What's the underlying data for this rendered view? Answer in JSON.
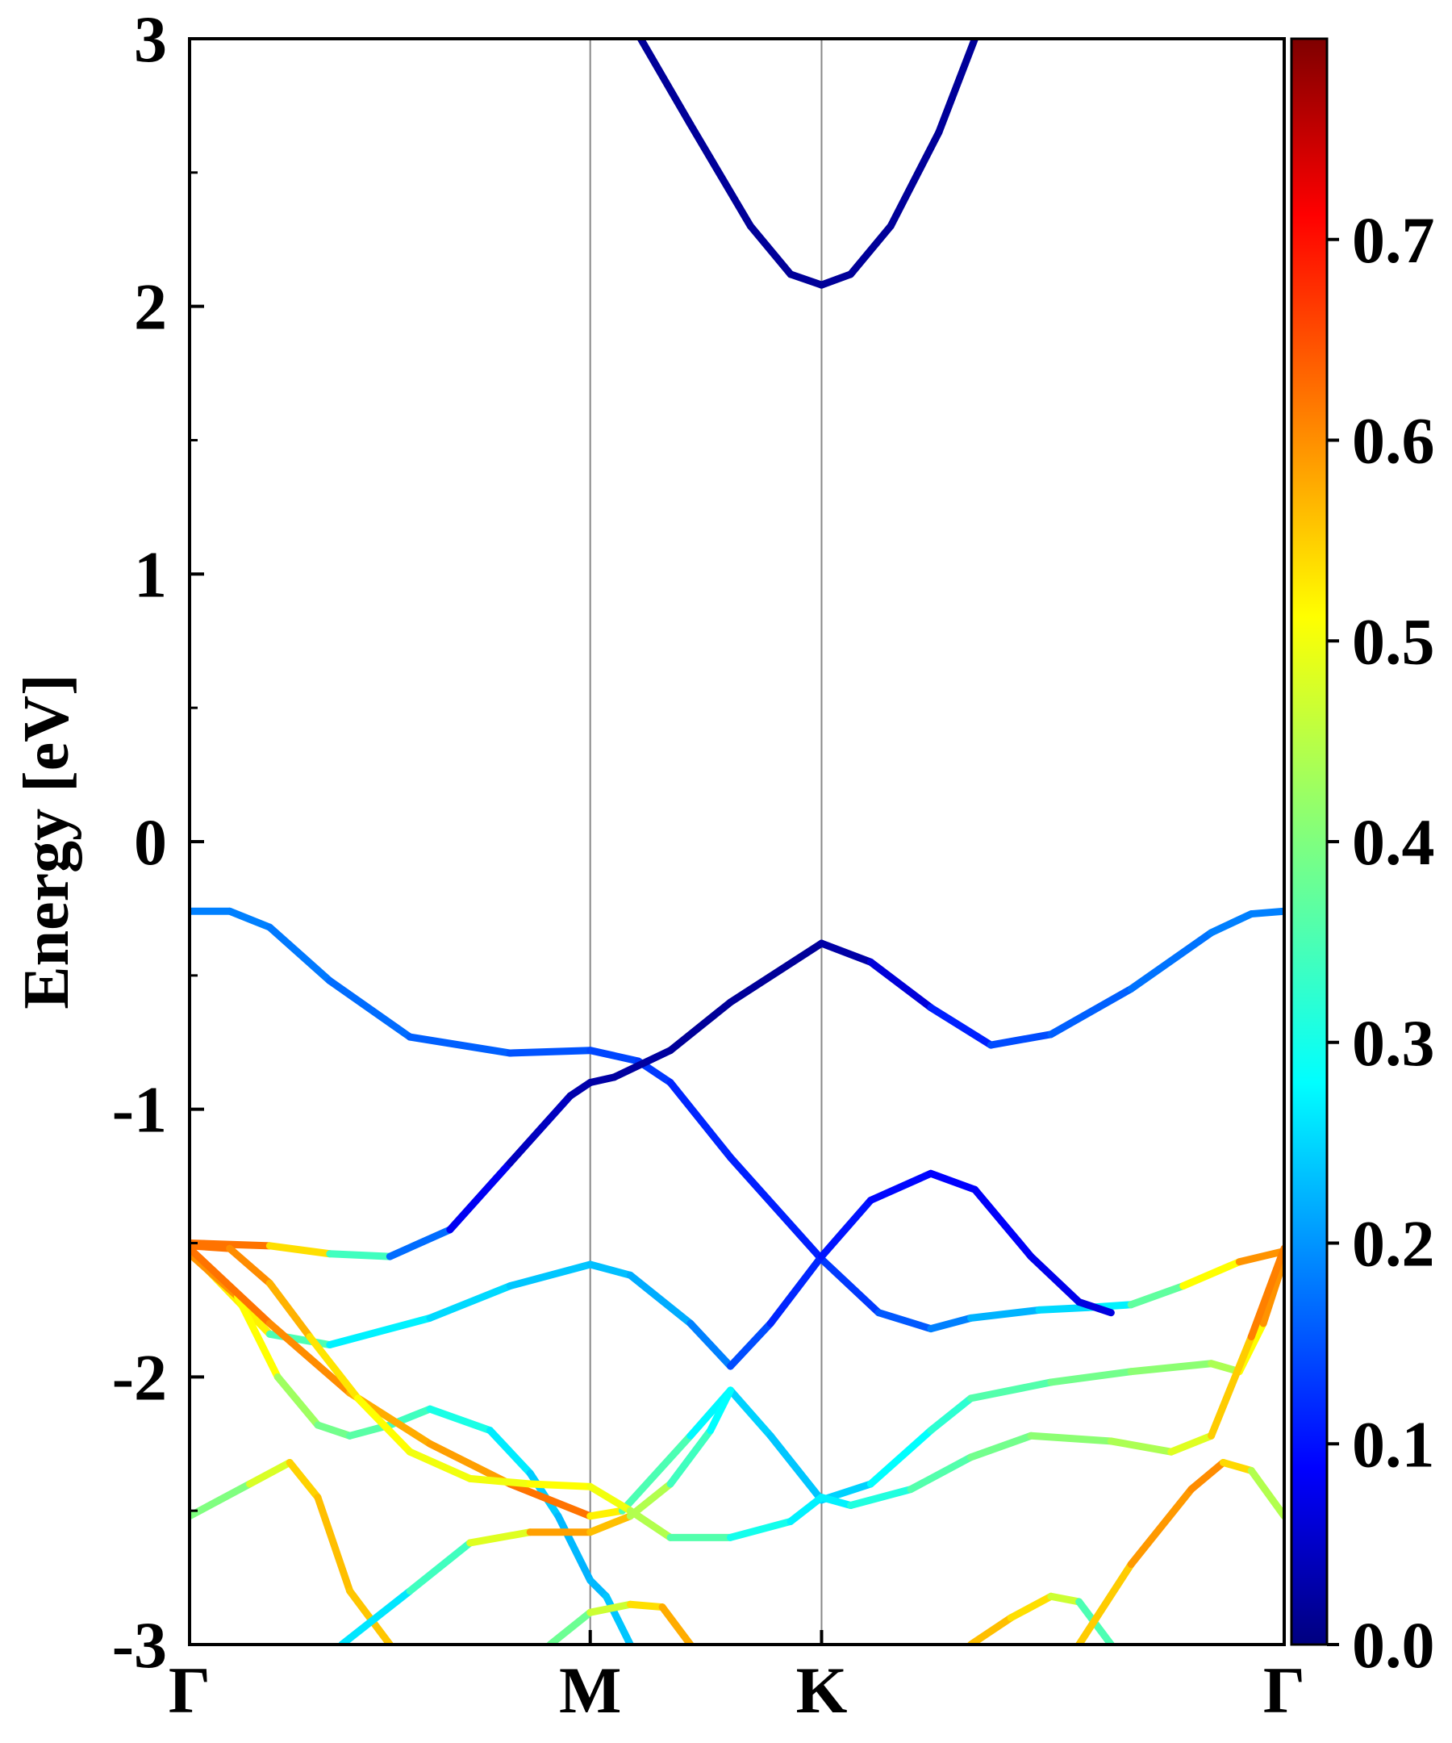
{
  "chart_data": {
    "type": "line",
    "title": "",
    "xlabel": "",
    "ylabel": "Energy [eV]",
    "ylim": [
      -3,
      3
    ],
    "yticks": [
      "-3",
      "-2",
      "-1",
      "0",
      "1",
      "2",
      "3"
    ],
    "kpoints": [
      {
        "label": "Γ",
        "pos": 0.0
      },
      {
        "label": "M",
        "pos": 1.0
      },
      {
        "label": "K",
        "pos": 1.5774
      },
      {
        "label": "Γ",
        "pos": 2.7321
      }
    ],
    "grid": false,
    "colorbar": {
      "colormap": "jet",
      "range": [
        0.0,
        0.8
      ],
      "ticks": [
        "0.0",
        "0.1",
        "0.2",
        "0.3",
        "0.4",
        "0.5",
        "0.6",
        "0.7"
      ]
    },
    "series": [
      {
        "points": [
          [
            1.126,
            3.0
          ],
          [
            1.25,
            2.68
          ],
          [
            1.4,
            2.3
          ],
          [
            1.5,
            2.12
          ],
          [
            1.5774,
            2.08
          ],
          [
            1.65,
            2.12
          ],
          [
            1.75,
            2.3
          ],
          [
            1.87,
            2.65
          ],
          [
            1.96,
            3.0
          ]
        ],
        "c": 0.02
      },
      {
        "points": [
          [
            0,
            -0.26
          ],
          [
            0.1,
            -0.26
          ],
          [
            0.2,
            -0.32
          ],
          [
            0.35,
            -0.52
          ],
          [
            0.55,
            -0.73
          ],
          [
            0.8,
            -0.79
          ],
          [
            1.0,
            -0.78
          ],
          [
            1.12,
            -0.82
          ],
          [
            1.2,
            -0.9
          ],
          [
            1.35,
            -1.18
          ],
          [
            1.5774,
            -1.56
          ],
          [
            1.72,
            -1.76
          ],
          [
            1.85,
            -1.82
          ],
          [
            1.95,
            -1.78
          ],
          [
            2.12,
            -1.75
          ],
          [
            2.25,
            -1.74
          ],
          [
            2.35,
            -1.73
          ],
          [
            2.48,
            -1.66
          ],
          [
            2.62,
            -1.57
          ],
          [
            2.7321,
            -1.53
          ]
        ],
        "c": [
          0.2,
          0.2,
          0.2,
          0.19,
          0.18,
          0.17,
          0.16,
          0.15,
          0.14,
          0.12,
          0.13,
          0.16,
          0.18,
          0.22,
          0.26,
          0.28,
          0.3,
          0.45,
          0.55,
          0.62
        ]
      },
      {
        "points": [
          [
            0,
            -1.5
          ],
          [
            0.2,
            -1.51
          ],
          [
            0.35,
            -1.54
          ],
          [
            0.5,
            -1.55
          ],
          [
            0.65,
            -1.45
          ],
          [
            0.8,
            -1.2
          ],
          [
            0.95,
            -0.95
          ],
          [
            1.0,
            -0.9
          ],
          [
            1.06,
            -0.88
          ],
          [
            1.2,
            -0.78
          ],
          [
            1.35,
            -0.6
          ],
          [
            1.5774,
            -0.38
          ],
          [
            1.7,
            -0.45
          ],
          [
            1.85,
            -0.62
          ],
          [
            2.0,
            -0.76
          ],
          [
            2.15,
            -0.72
          ],
          [
            2.35,
            -0.55
          ],
          [
            2.55,
            -0.34
          ],
          [
            2.65,
            -0.27
          ],
          [
            2.7321,
            -0.26
          ]
        ],
        "c": [
          0.62,
          0.6,
          0.45,
          0.25,
          0.12,
          0.06,
          0.04,
          0.03,
          0.03,
          0.02,
          0.02,
          0.02,
          0.04,
          0.1,
          0.15,
          0.17,
          0.18,
          0.2,
          0.2,
          0.2
        ]
      },
      {
        "points": [
          [
            0,
            -1.53
          ],
          [
            0.2,
            -1.84
          ],
          [
            0.35,
            -1.88
          ],
          [
            0.6,
            -1.78
          ],
          [
            0.8,
            -1.66
          ],
          [
            1.0,
            -1.58
          ],
          [
            1.1,
            -1.62
          ],
          [
            1.25,
            -1.8
          ],
          [
            1.35,
            -1.96
          ],
          [
            1.45,
            -1.8
          ],
          [
            1.5774,
            -1.55
          ],
          [
            1.7,
            -1.34
          ],
          [
            1.85,
            -1.24
          ],
          [
            1.96,
            -1.3
          ],
          [
            2.1,
            -1.55
          ],
          [
            2.22,
            -1.72
          ],
          [
            2.3,
            -1.76
          ]
        ],
        "c": [
          0.6,
          0.42,
          0.3,
          0.28,
          0.26,
          0.25,
          0.25,
          0.22,
          0.18,
          0.14,
          0.12,
          0.11,
          0.1,
          0.1,
          0.09,
          0.08,
          0.07
        ]
      },
      {
        "points": [
          [
            0,
            -1.54
          ],
          [
            0.12,
            -1.7
          ],
          [
            0.22,
            -2.0
          ],
          [
            0.32,
            -2.18
          ],
          [
            0.4,
            -2.22
          ],
          [
            0.5,
            -2.18
          ],
          [
            0.6,
            -2.12
          ],
          [
            0.75,
            -2.2
          ],
          [
            0.85,
            -2.36
          ],
          [
            0.92,
            -2.52
          ],
          [
            0.98,
            -2.7
          ],
          [
            1.0,
            -2.76
          ],
          [
            1.04,
            -2.82
          ],
          [
            1.1,
            -3.0
          ]
        ],
        "c": [
          0.62,
          0.55,
          0.45,
          0.4,
          0.38,
          0.36,
          0.34,
          0.3,
          0.27,
          0.25,
          0.24,
          0.24,
          0.25,
          0.26
        ]
      },
      {
        "points": [
          [
            0,
            -1.52
          ],
          [
            0.2,
            -1.8
          ],
          [
            0.4,
            -2.06
          ],
          [
            0.6,
            -2.25
          ],
          [
            0.8,
            -2.4
          ],
          [
            1.0,
            -2.52
          ],
          [
            1.08,
            -2.5
          ],
          [
            1.25,
            -2.22
          ],
          [
            1.35,
            -2.05
          ],
          [
            1.45,
            -2.22
          ],
          [
            1.5774,
            -2.46
          ],
          [
            1.7,
            -2.4
          ],
          [
            1.85,
            -2.2
          ],
          [
            1.95,
            -2.08
          ],
          [
            2.15,
            -2.02
          ],
          [
            2.35,
            -1.98
          ],
          [
            2.55,
            -1.95
          ],
          [
            2.62,
            -1.98
          ],
          [
            2.68,
            -1.8
          ],
          [
            2.7321,
            -1.56
          ]
        ],
        "c": [
          0.62,
          0.6,
          0.58,
          0.55,
          0.6,
          0.62,
          0.4,
          0.32,
          0.27,
          0.26,
          0.25,
          0.28,
          0.32,
          0.35,
          0.38,
          0.4,
          0.42,
          0.45,
          0.55,
          0.62
        ]
      },
      {
        "points": [
          [
            0,
            -1.51
          ],
          [
            0.1,
            -1.52
          ],
          [
            0.2,
            -1.65
          ],
          [
            0.3,
            -1.85
          ],
          [
            0.42,
            -2.08
          ],
          [
            0.55,
            -2.28
          ],
          [
            0.7,
            -2.38
          ],
          [
            0.85,
            -2.4
          ],
          [
            1.0,
            -2.41
          ],
          [
            1.1,
            -2.5
          ],
          [
            1.2,
            -2.6
          ],
          [
            1.35,
            -2.6
          ],
          [
            1.5,
            -2.54
          ],
          [
            1.5774,
            -2.45
          ],
          [
            1.65,
            -2.48
          ],
          [
            1.8,
            -2.42
          ],
          [
            1.95,
            -2.3
          ],
          [
            2.1,
            -2.22
          ],
          [
            2.3,
            -2.24
          ],
          [
            2.45,
            -2.28
          ],
          [
            2.55,
            -2.22
          ],
          [
            2.65,
            -1.85
          ],
          [
            2.7321,
            -1.52
          ]
        ],
        "c": [
          0.62,
          0.6,
          0.58,
          0.54,
          0.5,
          0.5,
          0.48,
          0.5,
          0.5,
          0.48,
          0.4,
          0.33,
          0.3,
          0.28,
          0.3,
          0.35,
          0.38,
          0.4,
          0.42,
          0.45,
          0.5,
          0.58,
          0.62
        ]
      },
      {
        "points": [
          [
            0,
            -2.52
          ],
          [
            0.15,
            -2.4
          ],
          [
            0.25,
            -2.32
          ],
          [
            0.32,
            -2.45
          ],
          [
            0.4,
            -2.8
          ],
          [
            0.5,
            -3.0
          ]
        ],
        "c": [
          0.38,
          0.42,
          0.52,
          0.55,
          0.55,
          0.54
        ]
      },
      {
        "points": [
          [
            0.38,
            -3.0
          ],
          [
            0.55,
            -2.8
          ],
          [
            0.7,
            -2.62
          ],
          [
            0.85,
            -2.58
          ],
          [
            1.0,
            -2.58
          ],
          [
            1.1,
            -2.52
          ],
          [
            1.2,
            -2.4
          ],
          [
            1.3,
            -2.2
          ],
          [
            1.35,
            -2.05
          ]
        ],
        "c": [
          0.26,
          0.3,
          0.4,
          0.55,
          0.6,
          0.5,
          0.38,
          0.32,
          0.28
        ]
      },
      {
        "points": [
          [
            0.9,
            -3.0
          ],
          [
            1.0,
            -2.88
          ],
          [
            1.1,
            -2.85
          ],
          [
            1.18,
            -2.86
          ],
          [
            1.25,
            -3.0
          ]
        ],
        "c": [
          0.35,
          0.42,
          0.5,
          0.55,
          0.58
        ]
      },
      {
        "points": [
          [
            1.95,
            -3.0
          ],
          [
            2.05,
            -2.9
          ],
          [
            2.15,
            -2.82
          ],
          [
            2.22,
            -2.84
          ],
          [
            2.3,
            -3.0
          ]
        ],
        "c": [
          0.55,
          0.55,
          0.5,
          0.42,
          0.3
        ]
      },
      {
        "points": [
          [
            2.22,
            -3.0
          ],
          [
            2.35,
            -2.7
          ],
          [
            2.5,
            -2.42
          ],
          [
            2.58,
            -2.32
          ],
          [
            2.65,
            -2.35
          ],
          [
            2.7321,
            -2.52
          ]
        ],
        "c": [
          0.52,
          0.56,
          0.6,
          0.58,
          0.48,
          0.4
        ]
      }
    ]
  }
}
